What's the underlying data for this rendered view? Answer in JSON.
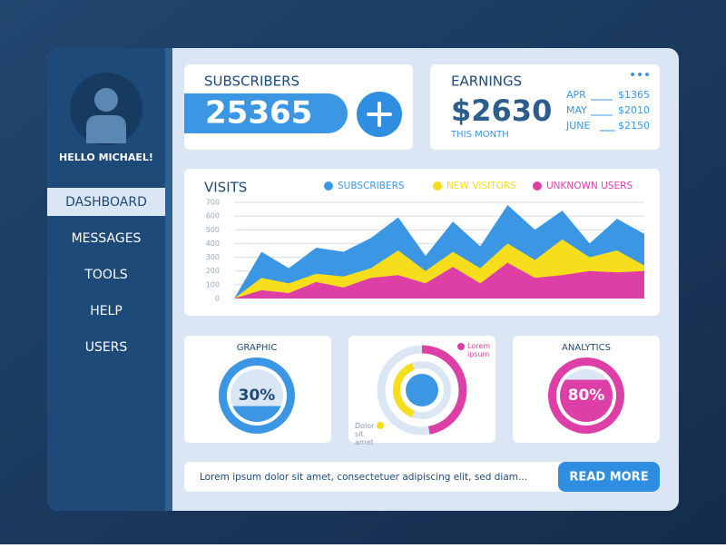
{
  "sidebar": {
    "greeting": "HELLO MICHAEL!",
    "menu": [
      "DASHBOARD",
      "MESSAGES",
      "TOOLS",
      "HELP",
      "USERS"
    ]
  },
  "subscribers": {
    "title": "SUBSCRIBERS",
    "count": "25365"
  },
  "earnings": {
    "title": "EARNINGS",
    "amount": "$2630",
    "period": "THIS MONTH",
    "months": [
      {
        "month": "APR",
        "amount": "$1365"
      },
      {
        "month": "MAY",
        "amount": "$2010"
      },
      {
        "month": "JUNE",
        "amount": "$2150"
      }
    ]
  },
  "donut": {
    "labels": [
      "Lorem ipsum",
      "Dolor sit amet"
    ]
  },
  "footer": {
    "text": "Lorem ipsum dolor sit amet, consectetuer adipiscing elit, sed diam...",
    "button": "READ MORE"
  },
  "chart_data": [
    {
      "type": "area",
      "title": "VISITS",
      "categories": [
        null,
        null,
        null,
        null,
        null,
        null,
        null,
        null,
        null,
        null,
        null,
        null,
        null,
        null,
        null,
        null
      ],
      "series": [
        {
          "name": "SUBSCRIBERS",
          "color": "#3b97e3",
          "values": [
            0,
            340,
            220,
            370,
            340,
            440,
            590,
            310,
            560,
            380,
            680,
            500,
            640,
            400,
            580,
            470
          ]
        },
        {
          "name": "NEW VISITORS",
          "color": "#f6de1d",
          "values": [
            0,
            150,
            110,
            180,
            160,
            220,
            350,
            200,
            340,
            220,
            400,
            280,
            430,
            300,
            350,
            240
          ]
        },
        {
          "name": "UNKNOWN USERS",
          "color": "#de3fa6",
          "values": [
            0,
            60,
            40,
            120,
            80,
            150,
            170,
            110,
            230,
            110,
            260,
            150,
            170,
            200,
            190,
            200
          ]
        }
      ],
      "ylim": [
        0,
        700
      ],
      "yticks": [
        0,
        100,
        200,
        300,
        400,
        500,
        600,
        700
      ],
      "grid": true,
      "legend": "top"
    },
    {
      "type": "gauge",
      "title": "GRAPHIC",
      "values": [
        30
      ],
      "value_labels": [
        "30%"
      ],
      "color": "#3b97e3",
      "label_color": "#1d4a78"
    },
    {
      "type": "gauge",
      "title": "ANALYTICS",
      "values": [
        80
      ],
      "value_labels": [
        "80%"
      ],
      "color": "#de3fa6",
      "label_color": "#ffffff"
    }
  ]
}
